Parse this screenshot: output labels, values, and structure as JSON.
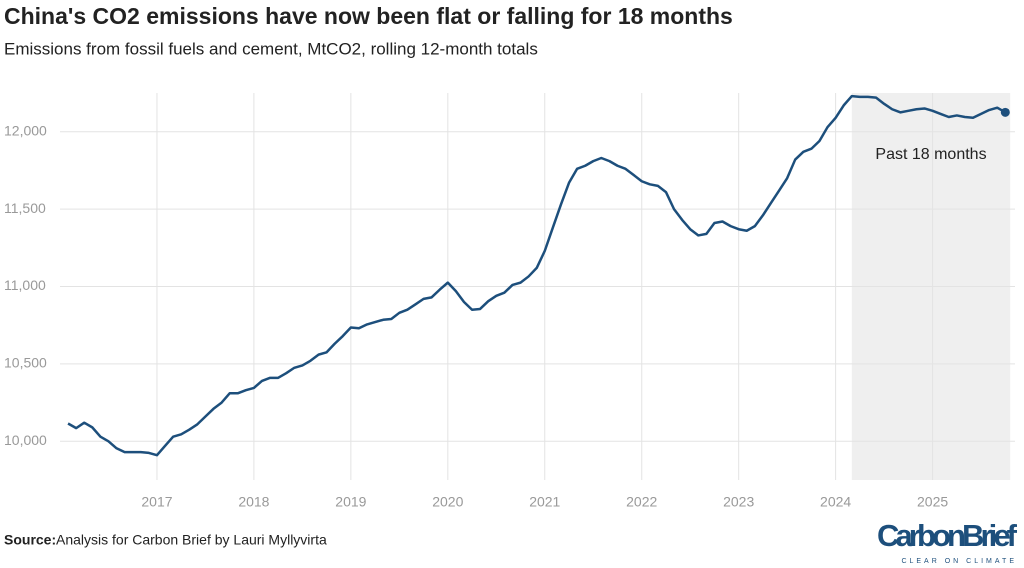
{
  "chart_data": {
    "type": "line",
    "title": "China's CO2 emissions have now been flat or falling for 18 months",
    "subtitle": "Emissions from fossil fuels and cement, MtCO2, rolling 12-month totals",
    "x": [
      2016.083,
      2016.167,
      2016.25,
      2016.333,
      2016.417,
      2016.5,
      2016.583,
      2016.667,
      2016.75,
      2016.833,
      2016.917,
      2017,
      2017.083,
      2017.167,
      2017.25,
      2017.333,
      2017.417,
      2017.5,
      2017.583,
      2017.667,
      2017.75,
      2017.833,
      2017.917,
      2018,
      2018.083,
      2018.167,
      2018.25,
      2018.333,
      2018.417,
      2018.5,
      2018.583,
      2018.667,
      2018.75,
      2018.833,
      2018.917,
      2019,
      2019.083,
      2019.167,
      2019.25,
      2019.333,
      2019.417,
      2019.5,
      2019.583,
      2019.667,
      2019.75,
      2019.833,
      2019.917,
      2020,
      2020.083,
      2020.167,
      2020.25,
      2020.333,
      2020.417,
      2020.5,
      2020.583,
      2020.667,
      2020.75,
      2020.833,
      2020.917,
      2021,
      2021.083,
      2021.167,
      2021.25,
      2021.333,
      2021.417,
      2021.5,
      2021.583,
      2021.667,
      2021.75,
      2021.833,
      2021.917,
      2022,
      2022.083,
      2022.167,
      2022.25,
      2022.333,
      2022.417,
      2022.5,
      2022.583,
      2022.667,
      2022.75,
      2022.833,
      2022.917,
      2023,
      2023.083,
      2023.167,
      2023.25,
      2023.333,
      2023.417,
      2023.5,
      2023.583,
      2023.667,
      2023.75,
      2023.833,
      2023.917,
      2024,
      2024.083,
      2024.167,
      2024.25,
      2024.333,
      2024.417,
      2024.5,
      2024.583,
      2024.667,
      2024.75,
      2024.833,
      2024.917,
      2025,
      2025.083,
      2025.167,
      2025.25,
      2025.333,
      2025.417,
      2025.5,
      2025.583,
      2025.667,
      2025.75
    ],
    "series": [
      {
        "color": "#1d4f7c",
        "values": [
          10115,
          10085,
          10120,
          10090,
          10030,
          10000,
          9955,
          9930,
          9930,
          9930,
          9925,
          9910,
          9970,
          10030,
          10045,
          10075,
          10110,
          10160,
          10210,
          10250,
          10310,
          10310,
          10330,
          10345,
          10390,
          10410,
          10410,
          10440,
          10475,
          10490,
          10520,
          10560,
          10575,
          10630,
          10680,
          10735,
          10730,
          10755,
          10770,
          10785,
          10790,
          10830,
          10850,
          10885,
          10920,
          10930,
          10980,
          11025,
          10970,
          10900,
          10850,
          10855,
          10905,
          10940,
          10960,
          11010,
          11025,
          11065,
          11120,
          11230,
          11380,
          11530,
          11670,
          11760,
          11780,
          11810,
          11830,
          11810,
          11780,
          11760,
          11720,
          11680,
          11660,
          11650,
          11610,
          11500,
          11430,
          11370,
          11330,
          11340,
          11410,
          11420,
          11390,
          11370,
          11360,
          11390,
          11460,
          11540,
          11620,
          11700,
          11820,
          11870,
          11890,
          11940,
          12030,
          12090,
          12170,
          12230,
          12225,
          12225,
          12220,
          12180,
          12145,
          12125,
          12135,
          12145,
          12150,
          12135,
          12115,
          12095,
          12105,
          12095,
          12090,
          12115,
          12140,
          12155,
          12125
        ]
      }
    ],
    "end_marker": true,
    "xlim": [
      2016,
      2025.85
    ],
    "xticks": [
      2017,
      2018,
      2019,
      2020,
      2021,
      2022,
      2023,
      2024,
      2025
    ],
    "ylim": [
      9750,
      12250
    ],
    "yticks": [
      {
        "value": 10000,
        "label": "10,000"
      },
      {
        "value": 10500,
        "label": "10,500"
      },
      {
        "value": 11000,
        "label": "11,000"
      },
      {
        "value": 11500,
        "label": "11,500"
      },
      {
        "value": 12000,
        "label": "12,000"
      }
    ],
    "grid": true,
    "highlight": {
      "label": "Past 18 months",
      "xrange": [
        2024.167,
        2025.8
      ],
      "color": "#efefef"
    }
  },
  "footer": {
    "source_label": "Source:",
    "source": "Analysis for Carbon Brief by Lauri Myllyvirta",
    "logo": "CarbonBrief",
    "tagline": "CLEAR ON CLIMATE"
  }
}
